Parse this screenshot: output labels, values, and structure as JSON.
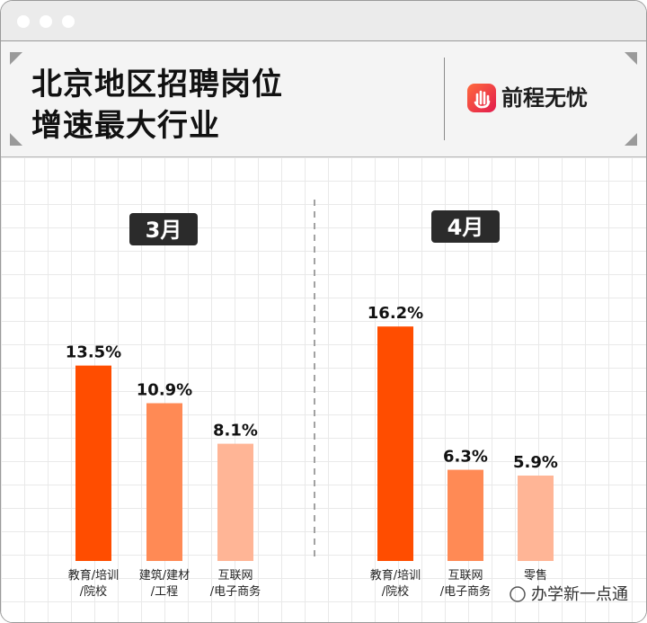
{
  "title_lines": [
    "北京地区招聘岗位",
    "增速最大行业"
  ],
  "brand": "前程无忧",
  "watermark": "办学新一点通",
  "colors": {
    "bar_1": "#ff4d00",
    "bar_2": "#ff8a55",
    "bar_3": "#ffb596",
    "label_bg": "#2b2b2b",
    "label_text": "#ffffff"
  },
  "chart_data": [
    {
      "type": "bar",
      "title": "3月",
      "categories": [
        "教育/培训/院校",
        "建筑/建材/工程",
        "互联网/电子商务"
      ],
      "category_lines": [
        [
          "教育/培训",
          "/院校"
        ],
        [
          "建筑/建材",
          "/工程"
        ],
        [
          "互联网",
          "/电子商务"
        ]
      ],
      "values": [
        13.5,
        10.9,
        8.1
      ],
      "value_labels": [
        "13.5%",
        "10.9%",
        "8.1%"
      ],
      "unit": "%",
      "ylim": [
        0,
        20
      ]
    },
    {
      "type": "bar",
      "title": "4月",
      "categories": [
        "教育/培训/院校",
        "互联网/电子商务",
        "零售"
      ],
      "category_lines": [
        [
          "教育/培训",
          "/院校"
        ],
        [
          "互联网",
          "/电子商务"
        ],
        [
          "零售"
        ]
      ],
      "values": [
        16.2,
        6.3,
        5.9
      ],
      "value_labels": [
        "16.2%",
        "6.3%",
        "5.9%"
      ],
      "unit": "%",
      "ylim": [
        0,
        20
      ]
    }
  ]
}
